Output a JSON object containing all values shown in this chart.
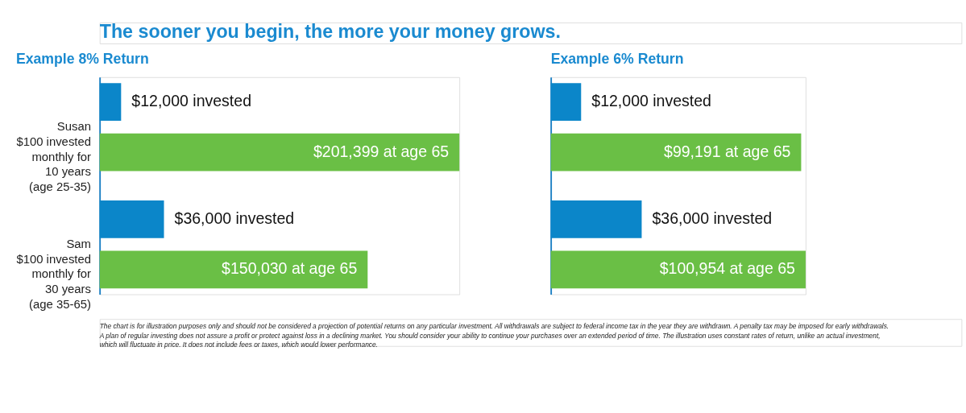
{
  "chart_data": [
    {
      "type": "bar",
      "orientation": "horizontal",
      "title": "Example 8% Return",
      "tick_labels": "y",
      "categories": [
        "Susan\n$100 invested\nmonthly for\n10 years\n(age 25-35)",
        "Sam\n$100 invested\nmonthly for\n30 years\n(age 35-65)"
      ],
      "series": [
        {
          "color": "#0b86c9",
          "values": [
            12000,
            36000
          ],
          "value_labels": [
            "$12,000 invested",
            "$36,000 invested"
          ]
        },
        {
          "color": "#6abf45",
          "values": [
            201399,
            150030
          ],
          "value_labels": [
            "$201,399 at age 65",
            "$150,030 at age 65"
          ]
        }
      ],
      "annotations": [
        "The sooner you begin, the more your money grows.",
        "The chart is for illustration purposes only and should not be considered a projection of potential returns on any particular investment.  All withdrawals are subject to federal income tax in the year they are withdrawn.  A penalty tax may be imposed for early withdrawals.",
        "A plan of regular investing does not assure a profit or protect against loss in a declining market.  You should consider your ability to continue your purchases over an extended period of time.  The illustration uses constant rates of return, unlike an actual investment,",
        "which will fluctuate in price.  It does not include fees or taxes, which would lower performance."
      ]
    },
    {
      "type": "bar",
      "orientation": "horizontal",
      "title": "Example 6% Return",
      "tick_labels": false,
      "categories": [
        null,
        null
      ],
      "series": [
        {
          "color": "#0b86c9",
          "values": [
            12000,
            36000
          ],
          "value_labels": [
            "$12,000 invested",
            "$36,000 invested"
          ]
        },
        {
          "color": "#6abf45",
          "values": [
            99191,
            100954
          ],
          "value_labels": [
            "$99,191 at age 65",
            "$100,954 at age 65"
          ]
        }
      ]
    }
  ]
}
